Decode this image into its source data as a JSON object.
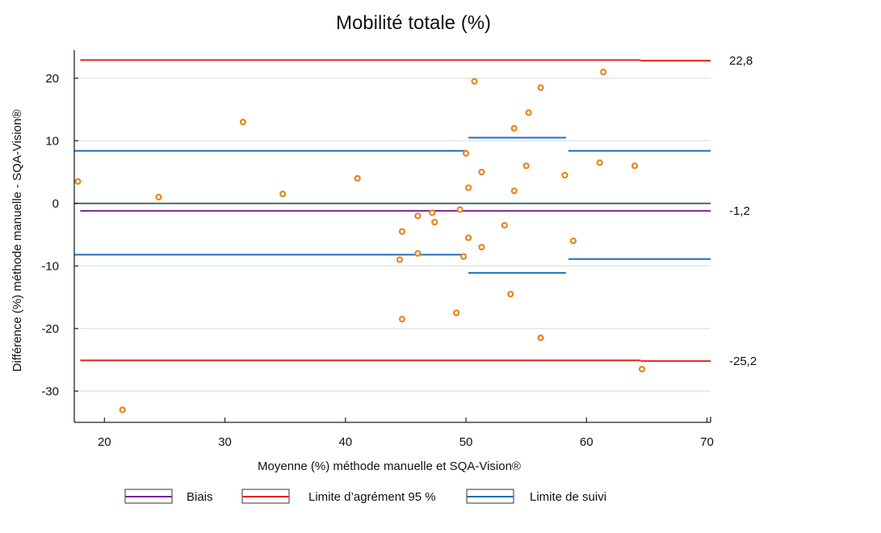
{
  "chart_data": {
    "type": "scatter",
    "title": "Mobilité totale (%)",
    "xlabel": "Moyenne (%) méthode manuelle et SQA-Vision®",
    "ylabel": "Différence (%) méthode manuelle - SQA-Vision®",
    "xlim": [
      17.5,
      70.3
    ],
    "ylim": [
      -35,
      24.5
    ],
    "xticks": [
      20,
      30,
      40,
      50,
      60,
      70
    ],
    "yticks": [
      20,
      10,
      0,
      -10,
      -20,
      -30
    ],
    "grid": true,
    "legend_position": "bottom",
    "points": [
      {
        "x": 17.8,
        "y": 3.5
      },
      {
        "x": 21.5,
        "y": -33
      },
      {
        "x": 24.5,
        "y": 1
      },
      {
        "x": 31.5,
        "y": 13
      },
      {
        "x": 34.8,
        "y": 1.5
      },
      {
        "x": 41,
        "y": 4
      },
      {
        "x": 44.5,
        "y": -9
      },
      {
        "x": 44.7,
        "y": -4.5
      },
      {
        "x": 44.7,
        "y": -18.5
      },
      {
        "x": 46,
        "y": -2
      },
      {
        "x": 46,
        "y": -8
      },
      {
        "x": 47.2,
        "y": -1.5
      },
      {
        "x": 47.4,
        "y": -3
      },
      {
        "x": 49.2,
        "y": -17.5
      },
      {
        "x": 49.5,
        "y": -1
      },
      {
        "x": 49.8,
        "y": -8.5
      },
      {
        "x": 50,
        "y": 8
      },
      {
        "x": 50.2,
        "y": 2.5
      },
      {
        "x": 50.2,
        "y": -5.5
      },
      {
        "x": 50.7,
        "y": 19.5
      },
      {
        "x": 51.3,
        "y": 5
      },
      {
        "x": 51.3,
        "y": -7
      },
      {
        "x": 53.2,
        "y": -3.5
      },
      {
        "x": 53.7,
        "y": -14.5
      },
      {
        "x": 54,
        "y": 2
      },
      {
        "x": 54,
        "y": 12
      },
      {
        "x": 55,
        "y": 6
      },
      {
        "x": 55.2,
        "y": 14.5
      },
      {
        "x": 56.2,
        "y": 18.5
      },
      {
        "x": 56.2,
        "y": -21.5
      },
      {
        "x": 58.2,
        "y": 4.5
      },
      {
        "x": 58.9,
        "y": -6
      },
      {
        "x": 61.1,
        "y": 6.5
      },
      {
        "x": 61.4,
        "y": 21
      },
      {
        "x": 64,
        "y": 6
      },
      {
        "x": 64.6,
        "y": -26.5
      }
    ],
    "reference_lines": [
      {
        "kind": "zero",
        "color": "#4f6f6b",
        "segments": [
          {
            "x0": 17.5,
            "x1": 70.3,
            "y": 0
          }
        ]
      },
      {
        "kind": "bias",
        "legend": "Biais",
        "color": "#7b1fa2",
        "segments": [
          {
            "x0": 18,
            "x1": 70.3,
            "y": -1.2
          }
        ]
      },
      {
        "kind": "loa",
        "legend": "Limite d'agrément 95 %",
        "color": "#e8241a",
        "segments": [
          {
            "x0": 18,
            "x1": 64.5,
            "y": 22.9
          },
          {
            "x0": 64.5,
            "x1": 70.3,
            "y": 22.8
          },
          {
            "x0": 18,
            "x1": 64.5,
            "y": -25.1
          },
          {
            "x0": 64.5,
            "x1": 70.3,
            "y": -25.2
          }
        ]
      },
      {
        "kind": "follow",
        "legend": "Limite de suivi",
        "color": "#1f6fb8",
        "segments": [
          {
            "x0": 17.5,
            "x1": 50,
            "y": 8.4
          },
          {
            "x0": 50.2,
            "x1": 58.3,
            "y": 10.5
          },
          {
            "x0": 58.5,
            "x1": 70.3,
            "y": 8.4
          },
          {
            "x0": 17.5,
            "x1": 50,
            "y": -8.2
          },
          {
            "x0": 50.2,
            "x1": 58.3,
            "y": -11.1
          },
          {
            "x0": 58.5,
            "x1": 70.3,
            "y": -8.9
          }
        ]
      }
    ],
    "right_labels": [
      {
        "y": 22.8,
        "text": "22,8"
      },
      {
        "y": -1.2,
        "text": "-1,2"
      },
      {
        "y": -25.2,
        "text": "-25,2"
      }
    ],
    "legend": [
      {
        "label": "Biais",
        "color": "#7b1fa2"
      },
      {
        "label": "Limite d’agrément 95 %",
        "color": "#e8241a"
      },
      {
        "label": "Limite de suivi",
        "color": "#1f6fb8"
      }
    ],
    "marker_color": "#e8841e"
  }
}
